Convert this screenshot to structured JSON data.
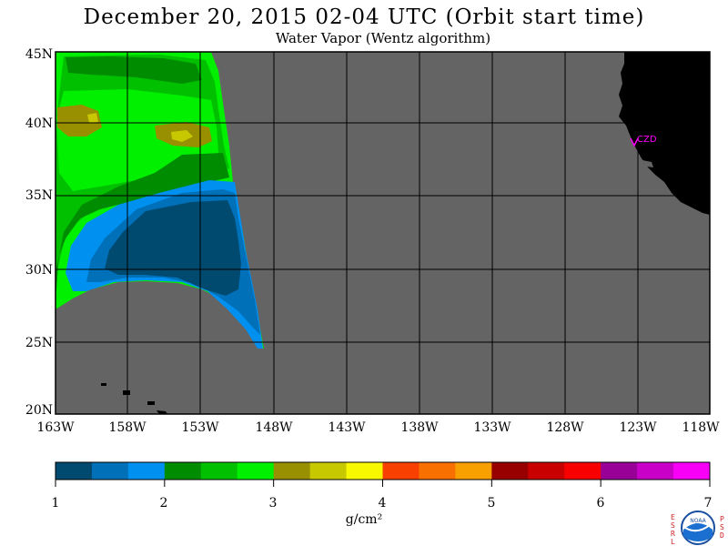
{
  "title": "December 20, 2015  02-04 UTC  (Orbit start time)",
  "subtitle": "Water Vapor (Wentz algorithm)",
  "lat_labels": [
    "45N",
    "40N",
    "35N",
    "30N",
    "25N",
    "20N"
  ],
  "lon_labels": [
    "163W",
    "158W",
    "153W",
    "148W",
    "143W",
    "138W",
    "133W",
    "128W",
    "123W",
    "118W"
  ],
  "station_label": "CZD",
  "colorbar": {
    "ticks": [
      "1",
      "2",
      "3",
      "4",
      "5",
      "6",
      "7"
    ],
    "units": "g/cm²",
    "colors": [
      "#004a70",
      "#0070b8",
      "#0090f0",
      "#008c00",
      "#00c000",
      "#00f000",
      "#989000",
      "#c8c800",
      "#f8f800",
      "#f84000",
      "#f87000",
      "#f8a000",
      "#980000",
      "#c80000",
      "#f80000",
      "#980098",
      "#c800c8",
      "#f800f8"
    ]
  },
  "logo": {
    "left_letters": "ESRL",
    "right_letters": "PSD",
    "center": "NOAA"
  },
  "colors": {
    "no_data": "#646464",
    "land": "#000000",
    "grid": "#000000",
    "station": "#ff00ff"
  }
}
